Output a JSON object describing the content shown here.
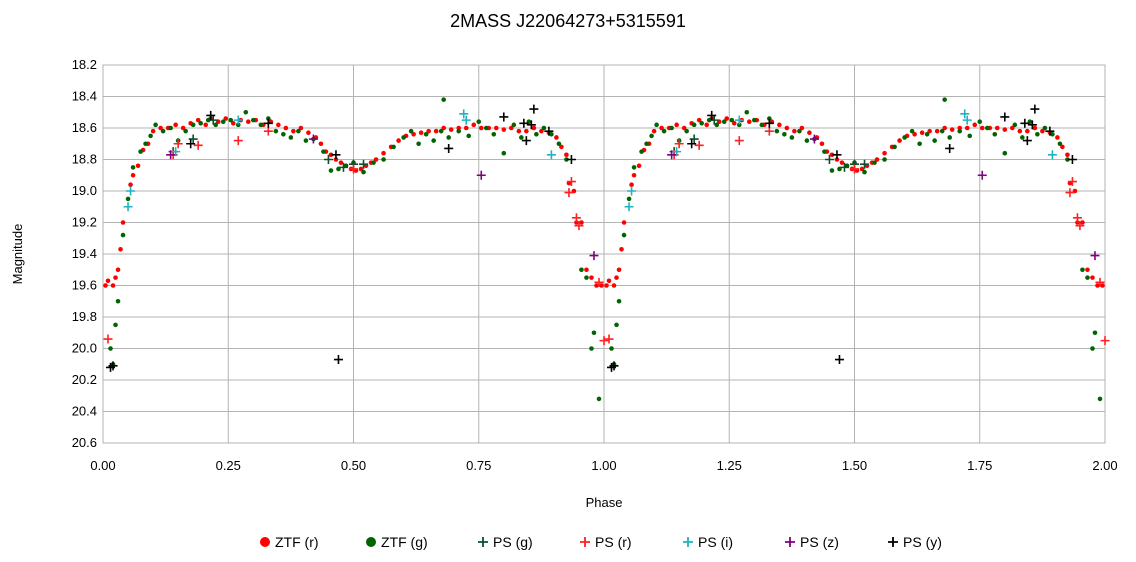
{
  "chart_data": {
    "type": "scatter",
    "title": "2MASS J22064273+5315591",
    "xlabel": "Phase",
    "ylabel": "Magnitude",
    "xlim": [
      0,
      2
    ],
    "ylim": [
      18.2,
      20.6
    ],
    "y_inverted": true,
    "grid": true,
    "legend_position": "bottom",
    "x_ticks": [
      "0.00",
      "0.25",
      "0.50",
      "0.75",
      "1.00",
      "1.25",
      "1.50",
      "1.75",
      "2.00"
    ],
    "y_ticks": [
      "18.2",
      "18.4",
      "18.6",
      "18.8",
      "19.0",
      "19.2",
      "19.4",
      "19.6",
      "19.8",
      "20.0",
      "20.2",
      "20.4",
      "20.6"
    ],
    "series": [
      {
        "name": "ZTF (r)",
        "marker": "dot",
        "color": "#ff0000",
        "points": [
          [
            0.005,
            19.6
          ],
          [
            0.01,
            19.57
          ],
          [
            0.02,
            19.6
          ],
          [
            0.025,
            19.55
          ],
          [
            0.03,
            19.5
          ],
          [
            0.035,
            19.37
          ],
          [
            0.04,
            19.2
          ],
          [
            0.055,
            18.96
          ],
          [
            0.06,
            18.9
          ],
          [
            0.07,
            18.84
          ],
          [
            0.08,
            18.74
          ],
          [
            0.09,
            18.7
          ],
          [
            0.1,
            18.62
          ],
          [
            0.115,
            18.6
          ],
          [
            0.13,
            18.6
          ],
          [
            0.145,
            18.58
          ],
          [
            0.16,
            18.6
          ],
          [
            0.175,
            18.57
          ],
          [
            0.19,
            18.55
          ],
          [
            0.205,
            18.58
          ],
          [
            0.215,
            18.54
          ],
          [
            0.23,
            18.56
          ],
          [
            0.245,
            18.54
          ],
          [
            0.26,
            18.57
          ],
          [
            0.275,
            18.55
          ],
          [
            0.29,
            18.56
          ],
          [
            0.305,
            18.55
          ],
          [
            0.32,
            18.58
          ],
          [
            0.335,
            18.56
          ],
          [
            0.35,
            18.58
          ],
          [
            0.365,
            18.6
          ],
          [
            0.38,
            18.62
          ],
          [
            0.395,
            18.6
          ],
          [
            0.41,
            18.63
          ],
          [
            0.425,
            18.66
          ],
          [
            0.435,
            18.7
          ],
          [
            0.445,
            18.75
          ],
          [
            0.455,
            18.77
          ],
          [
            0.465,
            18.8
          ],
          [
            0.475,
            18.82
          ],
          [
            0.485,
            18.84
          ],
          [
            0.495,
            18.86
          ],
          [
            0.505,
            18.87
          ],
          [
            0.515,
            18.86
          ],
          [
            0.525,
            18.84
          ],
          [
            0.535,
            18.82
          ],
          [
            0.545,
            18.8
          ],
          [
            0.56,
            18.76
          ],
          [
            0.575,
            18.72
          ],
          [
            0.59,
            18.68
          ],
          [
            0.605,
            18.65
          ],
          [
            0.62,
            18.64
          ],
          [
            0.635,
            18.63
          ],
          [
            0.65,
            18.62
          ],
          [
            0.665,
            18.62
          ],
          [
            0.68,
            18.6
          ],
          [
            0.695,
            18.61
          ],
          [
            0.71,
            18.6
          ],
          [
            0.725,
            18.6
          ],
          [
            0.74,
            18.58
          ],
          [
            0.755,
            18.6
          ],
          [
            0.77,
            18.6
          ],
          [
            0.785,
            18.6
          ],
          [
            0.8,
            18.61
          ],
          [
            0.815,
            18.6
          ],
          [
            0.83,
            18.62
          ],
          [
            0.845,
            18.62
          ],
          [
            0.86,
            18.6
          ],
          [
            0.875,
            18.62
          ],
          [
            0.89,
            18.63
          ],
          [
            0.905,
            18.66
          ],
          [
            0.915,
            18.72
          ],
          [
            0.925,
            18.77
          ],
          [
            0.93,
            18.95
          ],
          [
            0.94,
            19.0
          ],
          [
            0.945,
            19.2
          ],
          [
            0.955,
            19.2
          ],
          [
            0.965,
            19.5
          ],
          [
            0.975,
            19.55
          ],
          [
            0.985,
            19.6
          ],
          [
            0.995,
            19.6
          ]
        ]
      },
      {
        "name": "ZTF (g)",
        "marker": "dot",
        "color": "#006400",
        "points": [
          [
            0.015,
            20.0
          ],
          [
            0.02,
            20.1
          ],
          [
            0.025,
            19.85
          ],
          [
            0.03,
            19.7
          ],
          [
            0.04,
            19.28
          ],
          [
            0.05,
            19.05
          ],
          [
            0.06,
            18.85
          ],
          [
            0.075,
            18.75
          ],
          [
            0.085,
            18.7
          ],
          [
            0.095,
            18.65
          ],
          [
            0.105,
            18.58
          ],
          [
            0.12,
            18.62
          ],
          [
            0.135,
            18.6
          ],
          [
            0.15,
            18.68
          ],
          [
            0.165,
            18.62
          ],
          [
            0.18,
            18.58
          ],
          [
            0.195,
            18.57
          ],
          [
            0.21,
            18.55
          ],
          [
            0.225,
            18.58
          ],
          [
            0.24,
            18.56
          ],
          [
            0.255,
            18.55
          ],
          [
            0.27,
            18.58
          ],
          [
            0.285,
            18.5
          ],
          [
            0.3,
            18.55
          ],
          [
            0.315,
            18.58
          ],
          [
            0.33,
            18.54
          ],
          [
            0.345,
            18.62
          ],
          [
            0.36,
            18.64
          ],
          [
            0.375,
            18.66
          ],
          [
            0.39,
            18.62
          ],
          [
            0.405,
            18.68
          ],
          [
            0.42,
            18.67
          ],
          [
            0.44,
            18.75
          ],
          [
            0.455,
            18.87
          ],
          [
            0.47,
            18.86
          ],
          [
            0.485,
            18.84
          ],
          [
            0.5,
            18.82
          ],
          [
            0.52,
            18.88
          ],
          [
            0.54,
            18.82
          ],
          [
            0.56,
            18.8
          ],
          [
            0.58,
            18.72
          ],
          [
            0.6,
            18.66
          ],
          [
            0.615,
            18.62
          ],
          [
            0.63,
            18.7
          ],
          [
            0.645,
            18.64
          ],
          [
            0.66,
            18.68
          ],
          [
            0.675,
            18.62
          ],
          [
            0.68,
            18.42
          ],
          [
            0.69,
            18.66
          ],
          [
            0.71,
            18.62
          ],
          [
            0.73,
            18.65
          ],
          [
            0.75,
            18.56
          ],
          [
            0.765,
            18.6
          ],
          [
            0.78,
            18.64
          ],
          [
            0.8,
            18.76
          ],
          [
            0.82,
            18.58
          ],
          [
            0.835,
            18.66
          ],
          [
            0.85,
            18.56
          ],
          [
            0.865,
            18.64
          ],
          [
            0.88,
            18.6
          ],
          [
            0.895,
            18.64
          ],
          [
            0.91,
            18.7
          ],
          [
            0.925,
            18.8
          ],
          [
            0.955,
            19.5
          ],
          [
            0.965,
            19.55
          ],
          [
            0.975,
            20.0
          ],
          [
            0.98,
            19.9
          ],
          [
            0.99,
            20.32
          ]
        ]
      },
      {
        "name": "PS (g)",
        "marker": "plus",
        "color": "#0d4f2e",
        "points": [
          [
            0.14,
            18.75
          ],
          [
            0.18,
            18.67
          ],
          [
            0.22,
            18.55
          ],
          [
            0.45,
            18.8
          ],
          [
            0.48,
            18.85
          ],
          [
            0.5,
            18.83
          ],
          [
            0.52,
            18.83
          ]
        ]
      },
      {
        "name": "PS (r)",
        "marker": "plus",
        "color": "#ff2020",
        "points": [
          [
            0.01,
            19.94
          ],
          [
            0.14,
            18.77
          ],
          [
            0.15,
            18.7
          ],
          [
            0.19,
            18.71
          ],
          [
            0.27,
            18.68
          ],
          [
            0.33,
            18.62
          ],
          [
            0.5,
            18.86
          ],
          [
            0.93,
            19.01
          ],
          [
            0.935,
            18.94
          ],
          [
            0.945,
            19.17
          ],
          [
            0.95,
            19.22
          ],
          [
            0.99,
            19.58
          ],
          [
            1.0,
            19.95
          ]
        ]
      },
      {
        "name": "PS (i)",
        "marker": "plus",
        "color": "#20b2c0",
        "points": [
          [
            0.05,
            19.1
          ],
          [
            0.055,
            19.0
          ],
          [
            0.145,
            18.75
          ],
          [
            0.27,
            18.55
          ],
          [
            0.72,
            18.51
          ],
          [
            0.725,
            18.55
          ],
          [
            0.895,
            18.77
          ]
        ]
      },
      {
        "name": "PS (z)",
        "marker": "plus",
        "color": "#800080",
        "points": [
          [
            0.135,
            18.77
          ],
          [
            0.42,
            18.67
          ],
          [
            0.755,
            18.9
          ],
          [
            0.98,
            19.41
          ]
        ]
      },
      {
        "name": "PS (y)",
        "marker": "plus",
        "color": "#000000",
        "points": [
          [
            0.015,
            20.12
          ],
          [
            0.02,
            20.11
          ],
          [
            0.175,
            18.7
          ],
          [
            0.215,
            18.52
          ],
          [
            0.33,
            18.57
          ],
          [
            0.465,
            18.77
          ],
          [
            0.47,
            20.07
          ],
          [
            0.69,
            18.73
          ],
          [
            0.8,
            18.53
          ],
          [
            0.84,
            18.57
          ],
          [
            0.845,
            18.68
          ],
          [
            0.855,
            18.58
          ],
          [
            0.86,
            18.48
          ],
          [
            0.89,
            18.62
          ],
          [
            0.935,
            18.8
          ]
        ]
      }
    ]
  }
}
